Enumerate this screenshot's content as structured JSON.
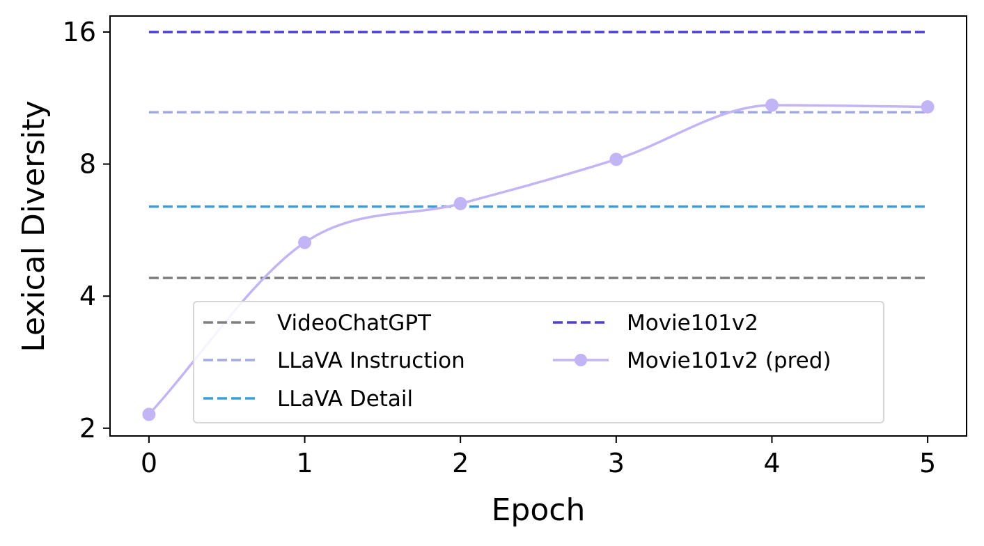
{
  "chart_data": {
    "type": "line",
    "xlabel": "Epoch",
    "ylabel": "Lexical Diversity",
    "xlim": [
      -0.25,
      5.25
    ],
    "ylim": [
      1.92,
      17.4
    ],
    "yscale": "log2",
    "xticks": [
      0,
      1,
      2,
      3,
      4,
      5
    ],
    "yticks": [
      2,
      4,
      8,
      16
    ],
    "grid": false,
    "legend": {
      "placement": "lower center",
      "columns": 2
    },
    "series": [
      {
        "name": "VideoChatGPT",
        "style": "dashed",
        "color": "#808080",
        "constant": 4.4
      },
      {
        "name": "LLaVA Instruction",
        "style": "dashed",
        "color": "#a3a8e6",
        "constant": 10.5
      },
      {
        "name": "LLaVA Detail",
        "style": "dashed",
        "color": "#3a9fd6",
        "constant": 6.4
      },
      {
        "name": "Movie101v2",
        "style": "dashed",
        "color": "#4b3fd6",
        "constant": 16
      },
      {
        "name": "Movie101v2 (pred)",
        "style": "solid-marker",
        "color": "#c3b5f5",
        "x": [
          0,
          1,
          2,
          3,
          4,
          5
        ],
        "y": [
          2.15,
          5.3,
          6.5,
          8.2,
          10.9,
          10.8
        ]
      }
    ]
  }
}
